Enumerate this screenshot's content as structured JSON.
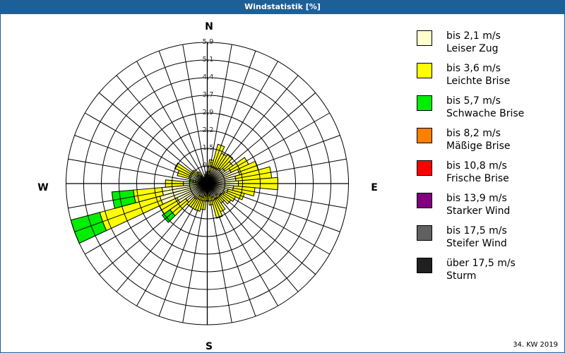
{
  "title": "Windstatistik [%]",
  "footer": "34. KW 2019",
  "compass": {
    "n": "N",
    "e": "E",
    "s": "S",
    "w": "W"
  },
  "legend": [
    {
      "color": "#ffffcc",
      "line1": "bis 2,1 m/s",
      "line2": "Leiser Zug"
    },
    {
      "color": "#ffff00",
      "line1": "bis 3,6 m/s",
      "line2": "Leichte Brise"
    },
    {
      "color": "#00ee00",
      "line1": "bis 5,7 m/s",
      "line2": "Schwache Brise"
    },
    {
      "color": "#ff8000",
      "line1": "bis 8,2 m/s",
      "line2": "Mäßige Brise"
    },
    {
      "color": "#ff0000",
      "line1": "bis 10,8 m/s",
      "line2": "Frische Brise"
    },
    {
      "color": "#800080",
      "line1": "bis 13,9 m/s",
      "line2": "Starker Wind"
    },
    {
      "color": "#606060",
      "line1": "bis 17,5 m/s",
      "line2": "Steifer Wind"
    },
    {
      "color": "#202020",
      "line1": "über 17,5 m/s",
      "line2": "Sturm"
    }
  ],
  "chart_data": {
    "type": "polar-stacked-bar (wind rose)",
    "title": "Windstatistik [%]",
    "rings": [
      "0,7",
      "1,5",
      "2,2",
      "2,9",
      "3,7",
      "4,4",
      "5,1",
      "5,9"
    ],
    "rmax": 5.9,
    "sector_width_deg": 10,
    "series": [
      "bis 2,1 m/s",
      "bis 3,6 m/s",
      "bis 5,7 m/s",
      "bis 8,2 m/s",
      "bis 10,8 m/s",
      "bis 13,9 m/s",
      "bis 17,5 m/s",
      "über 17,5 m/s"
    ],
    "note": "values are per-class percentages (stacked outward), estimated from the image",
    "sectors": [
      {
        "dir": 0,
        "values": [
          0.3,
          0.2,
          0
        ]
      },
      {
        "dir": 10,
        "values": [
          0.5,
          0.5,
          0
        ]
      },
      {
        "dir": 20,
        "values": [
          0.7,
          1.0,
          0
        ]
      },
      {
        "dir": 30,
        "values": [
          0.7,
          0.7,
          0
        ]
      },
      {
        "dir": 40,
        "values": [
          0.8,
          0.7,
          0
        ]
      },
      {
        "dir": 50,
        "values": [
          0.9,
          0.4,
          0
        ]
      },
      {
        "dir": 60,
        "values": [
          1.1,
          0.8,
          0
        ]
      },
      {
        "dir": 70,
        "values": [
          1.4,
          0.8,
          0
        ]
      },
      {
        "dir": 80,
        "values": [
          1.2,
          1.5,
          0
        ]
      },
      {
        "dir": 90,
        "values": [
          1.3,
          1.65,
          0
        ]
      },
      {
        "dir": 100,
        "values": [
          1.1,
          0.9,
          0
        ]
      },
      {
        "dir": 110,
        "values": [
          0.9,
          0.7,
          0
        ]
      },
      {
        "dir": 120,
        "values": [
          0.8,
          0.5,
          0
        ]
      },
      {
        "dir": 130,
        "values": [
          0.7,
          0.5,
          0
        ]
      },
      {
        "dir": 140,
        "values": [
          0.6,
          0.4,
          0
        ]
      },
      {
        "dir": 150,
        "values": [
          0.7,
          0.6,
          0
        ]
      },
      {
        "dir": 160,
        "values": [
          0.6,
          0.9,
          0
        ]
      },
      {
        "dir": 170,
        "values": [
          0.5,
          0.4,
          0
        ]
      },
      {
        "dir": 180,
        "values": [
          0.4,
          0.3,
          0
        ]
      },
      {
        "dir": 190,
        "values": [
          0.5,
          0.6,
          0
        ]
      },
      {
        "dir": 200,
        "values": [
          0.6,
          0.6,
          0
        ]
      },
      {
        "dir": 210,
        "values": [
          0.6,
          0.6,
          0
        ]
      },
      {
        "dir": 220,
        "values": [
          0.8,
          0.4,
          0
        ]
      },
      {
        "dir": 230,
        "values": [
          1.1,
          0.8,
          0.4
        ]
      },
      {
        "dir": 240,
        "values": [
          1.4,
          0.8,
          0
        ]
      },
      {
        "dir": 250,
        "values": [
          2.05,
          2.6,
          1.25
        ]
      },
      {
        "dir": 260,
        "values": [
          1.9,
          1.2,
          0.9
        ]
      },
      {
        "dir": 270,
        "values": [
          1.0,
          0.75,
          0
        ]
      },
      {
        "dir": 280,
        "values": [
          0.5,
          0.1,
          0.15
        ]
      },
      {
        "dir": 290,
        "values": [
          0.8,
          0.5,
          0
        ]
      },
      {
        "dir": 300,
        "values": [
          0.8,
          0.7,
          0
        ]
      },
      {
        "dir": 310,
        "values": [
          0.5,
          0.3,
          0
        ]
      },
      {
        "dir": 320,
        "values": [
          0.4,
          0.2,
          0
        ]
      },
      {
        "dir": 330,
        "values": [
          0.2,
          0.1,
          0
        ]
      },
      {
        "dir": 340,
        "values": [
          0.2,
          0.1,
          0
        ]
      },
      {
        "dir": 350,
        "values": [
          0.2,
          0.2,
          0
        ]
      }
    ]
  }
}
